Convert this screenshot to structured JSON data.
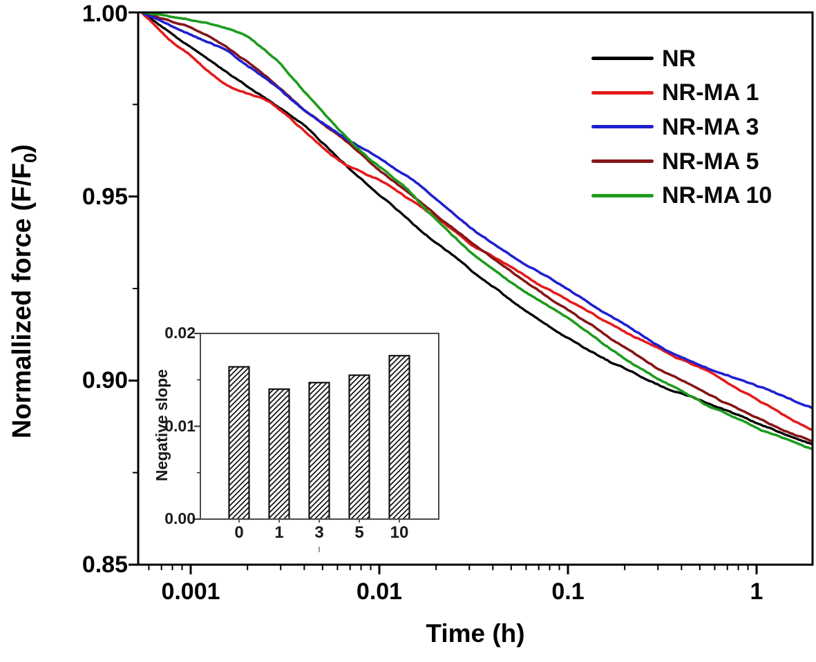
{
  "figure": {
    "xlabel": "Time (h)",
    "ylabel_main": "Normallized force (F/F",
    "ylabel_sub": "0",
    "ylabel_close": ")",
    "legend": {
      "items": [
        {
          "label": "NR",
          "color": "#000000"
        },
        {
          "label": "NR-MA 1",
          "color": "#e31b1c"
        },
        {
          "label": "NR-MA 3",
          "color": "#2020cf"
        },
        {
          "label": "NR-MA 5",
          "color": "#841617"
        },
        {
          "label": "NR-MA 10",
          "color": "#1d9b1d"
        }
      ]
    }
  },
  "chart_data": {
    "type": "line",
    "title": "",
    "xlabel": "Time (h)",
    "ylabel": "Normallized force (F/F0)",
    "x_scale": "log",
    "xlim": [
      0.00055,
      2
    ],
    "ylim": [
      0.85,
      1.0
    ],
    "x_major_ticks": [
      0.001,
      0.01,
      0.1,
      1
    ],
    "x_tick_labels": [
      "0.001",
      "0.01",
      "0.1",
      "1"
    ],
    "y_major_ticks": [
      1.0,
      0.95,
      0.9,
      0.85
    ],
    "y_tick_labels": [
      "1.00",
      "0.95",
      "0.90",
      "0.85"
    ],
    "y_minor_ticks": [
      0.975,
      0.925,
      0.875
    ],
    "grid": false,
    "legend_position": "upper right",
    "series": [
      {
        "name": "NR",
        "color": "#000000",
        "points": [
          [
            0.00055,
            1.0
          ],
          [
            0.001,
            0.9905
          ],
          [
            0.00158,
            0.9835
          ],
          [
            0.00251,
            0.9765
          ],
          [
            0.00398,
            0.9695
          ],
          [
            0.00631,
            0.9595
          ],
          [
            0.01,
            0.9505
          ],
          [
            0.0178,
            0.9395
          ],
          [
            0.0316,
            0.9295
          ],
          [
            0.0562,
            0.92
          ],
          [
            0.1,
            0.9115
          ],
          [
            0.178,
            0.9045
          ],
          [
            0.316,
            0.8985
          ],
          [
            0.562,
            0.8935
          ],
          [
            1,
            0.8885
          ],
          [
            2,
            0.8828
          ]
        ]
      },
      {
        "name": "NR-MA 1",
        "color": "#e31b1c",
        "points": [
          [
            0.00055,
            1.0
          ],
          [
            0.00079,
            0.992
          ],
          [
            0.001,
            0.9885
          ],
          [
            0.00126,
            0.9835
          ],
          [
            0.00158,
            0.98
          ],
          [
            0.002,
            0.978
          ],
          [
            0.00251,
            0.9765
          ],
          [
            0.00316,
            0.9725
          ],
          [
            0.00398,
            0.968
          ],
          [
            0.00501,
            0.9635
          ],
          [
            0.00631,
            0.959
          ],
          [
            0.01,
            0.9545
          ],
          [
            0.0178,
            0.946
          ],
          [
            0.0316,
            0.9365
          ],
          [
            0.0562,
            0.929
          ],
          [
            0.1,
            0.9215
          ],
          [
            0.178,
            0.9145
          ],
          [
            0.316,
            0.908
          ],
          [
            0.562,
            0.902
          ],
          [
            1,
            0.8945
          ],
          [
            2,
            0.886
          ]
        ]
      },
      {
        "name": "NR-MA 3",
        "color": "#2020cf",
        "points": [
          [
            0.00055,
            1.0
          ],
          [
            0.001,
            0.994
          ],
          [
            0.00158,
            0.9895
          ],
          [
            0.002,
            0.9855
          ],
          [
            0.00282,
            0.98
          ],
          [
            0.00398,
            0.9735
          ],
          [
            0.00631,
            0.9665
          ],
          [
            0.01,
            0.9607
          ],
          [
            0.0178,
            0.9517
          ],
          [
            0.0316,
            0.941
          ],
          [
            0.0562,
            0.9325
          ],
          [
            0.1,
            0.9251
          ],
          [
            0.178,
            0.9168
          ],
          [
            0.316,
            0.909
          ],
          [
            0.562,
            0.9035
          ],
          [
            1,
            0.899
          ],
          [
            2,
            0.8928
          ]
        ]
      },
      {
        "name": "NR-MA 5",
        "color": "#841617",
        "points": [
          [
            0.00055,
            1.0
          ],
          [
            0.001,
            0.996
          ],
          [
            0.00141,
            0.992
          ],
          [
            0.002,
            0.9865
          ],
          [
            0.00282,
            0.9805
          ],
          [
            0.00398,
            0.9735
          ],
          [
            0.00631,
            0.966
          ],
          [
            0.01,
            0.957
          ],
          [
            0.0178,
            0.947
          ],
          [
            0.0316,
            0.9373
          ],
          [
            0.0562,
            0.928
          ],
          [
            0.1,
            0.9192
          ],
          [
            0.178,
            0.9105
          ],
          [
            0.316,
            0.9025
          ],
          [
            0.562,
            0.8958
          ],
          [
            1,
            0.8895
          ],
          [
            2,
            0.8832
          ]
        ]
      },
      {
        "name": "NR-MA 10",
        "color": "#1d9b1d",
        "points": [
          [
            0.00055,
            1.0
          ],
          [
            0.00089,
            0.9985
          ],
          [
            0.00141,
            0.9965
          ],
          [
            0.002,
            0.9935
          ],
          [
            0.00282,
            0.9875
          ],
          [
            0.00398,
            0.9785
          ],
          [
            0.00562,
            0.97
          ],
          [
            0.00794,
            0.9625
          ],
          [
            0.01,
            0.958
          ],
          [
            0.0141,
            0.952
          ],
          [
            0.0178,
            0.946
          ],
          [
            0.0316,
            0.9338
          ],
          [
            0.0562,
            0.9245
          ],
          [
            0.1,
            0.9167
          ],
          [
            0.178,
            0.9078
          ],
          [
            0.316,
            0.9
          ],
          [
            0.562,
            0.8928
          ],
          [
            1,
            0.8868
          ],
          [
            2,
            0.8807
          ]
        ]
      }
    ],
    "inset": {
      "type": "bar",
      "ylabel": "Negative slope",
      "categories": [
        "0",
        "1",
        "3",
        "5",
        "10"
      ],
      "values": [
        0.0164,
        0.014,
        0.0147,
        0.0155,
        0.0176
      ],
      "ylim": [
        0.0,
        0.02
      ],
      "y_ticks": [
        0.0,
        0.01,
        0.02
      ],
      "y_tick_labels": [
        "0.00",
        "0.01",
        "0.02"
      ],
      "y_minor_ticks": [
        0.005,
        0.015
      ],
      "bar_fill": "white",
      "bar_hatch": "diagonal"
    }
  }
}
